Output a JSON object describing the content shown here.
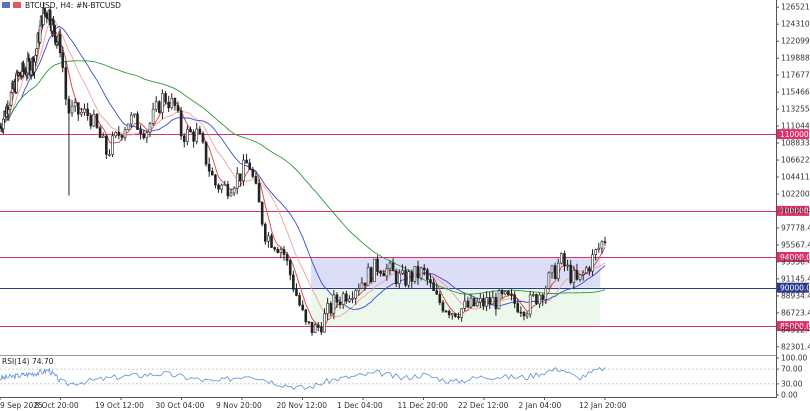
{
  "header": {
    "symbol": "BTCUSD, H4:",
    "description": "#N-BTCUSD"
  },
  "rsi_panel": {
    "label": "RSI(14) 74.70"
  },
  "price_axis": {
    "labels": [
      "126521.4",
      "124310.4",
      "122099.4",
      "119888.4",
      "117677.4",
      "115466.4",
      "113255.4",
      "111044.4",
      "108833.4",
      "106622.4",
      "104411.4",
      "102200.4",
      "99989.4",
      "97778.4",
      "95567.4",
      "93356.4",
      "91145.4",
      "88934.4",
      "86723.4",
      "84512.4",
      "82301.4"
    ]
  },
  "rsi_axis": {
    "labels": [
      "100.00",
      "70.00",
      "30.00",
      "0.00"
    ]
  },
  "time_axis": {
    "labels": [
      "9 Sep 2025",
      "8 Oct 20:00",
      "19 Oct 12:00",
      "30 Oct 04:00",
      "9 Nov 20:00",
      "20 Nov 12:00",
      "1 Dec 04:00",
      "11 Dec 20:00",
      "22 Dec 12:00",
      "2 Jan 04:00",
      "12 Jan 20:00"
    ]
  },
  "colors": {
    "level_line": "#e0306a",
    "support_line": "#2b3a8f",
    "zone_upper": "#d6d8f6",
    "zone_lower": "#eaf7ea",
    "candle": "#222222",
    "ma_fast": "#e04040",
    "ma_mid": "#f4a0a0",
    "ma_blue": "#3a4ad0",
    "ma_green": "#2e9a3a",
    "rsi": "#5b8fd8"
  },
  "chart_data": [
    {
      "type": "candlestick",
      "symbol": "BTCUSD",
      "timeframe": "H4",
      "ylim": [
        81500,
        127200
      ],
      "key_levels": [
        {
          "price": 110000,
          "label": "110000.0"
        },
        {
          "price": 100000,
          "label": "100000.0"
        },
        {
          "price": 94000,
          "label": "94000.0"
        },
        {
          "price": 90000,
          "label": "90000.0"
        },
        {
          "price": 85000,
          "label": "85000.0"
        }
      ],
      "zones": [
        {
          "from": 90000,
          "to": 94000,
          "start": "22 Nov",
          "end": "12 Jan"
        },
        {
          "from": 85000,
          "to": 90000,
          "start": "22 Nov",
          "end": "12 Jan"
        }
      ],
      "close_path": [
        [
          "9 Sep 2025",
          111000
        ],
        [
          "18 Sep",
          117500
        ],
        [
          "26 Sep",
          119500
        ],
        [
          "30 Sep",
          125500
        ],
        [
          "3 Oct",
          126000
        ],
        [
          "6 Oct",
          123000
        ],
        [
          "8 Oct 20:00",
          121500
        ],
        [
          "10 Oct",
          113000
        ],
        [
          "14 Oct",
          112500
        ],
        [
          "17 Oct",
          107500
        ],
        [
          "19 Oct 12:00",
          110500
        ],
        [
          "21 Oct",
          112000
        ],
        [
          "24 Oct",
          110500
        ],
        [
          "27 Oct",
          115000
        ],
        [
          "29 Oct",
          113500
        ],
        [
          "30 Oct 04:00",
          110000
        ],
        [
          "2 Nov",
          110000
        ],
        [
          "5 Nov",
          103500
        ],
        [
          "7 Nov",
          103000
        ],
        [
          "9 Nov 20:00",
          105000
        ],
        [
          "11 Nov",
          106500
        ],
        [
          "14 Nov",
          97000
        ],
        [
          "17 Nov",
          95000
        ],
        [
          "20 Nov 12:00",
          86500
        ],
        [
          "21 Nov",
          85000
        ],
        [
          "23 Nov",
          84500
        ],
        [
          "26 Nov",
          88000
        ],
        [
          "1 Dec 04:00",
          91000
        ],
        [
          "4 Dec",
          93000
        ],
        [
          "8 Dec",
          91000
        ],
        [
          "11 Dec 20:00",
          92000
        ],
        [
          "14 Dec",
          88500
        ],
        [
          "17 Dec",
          87000
        ],
        [
          "22 Dec 12:00",
          88000
        ],
        [
          "26 Dec",
          88500
        ],
        [
          "30 Dec",
          87500
        ],
        [
          "2 Jan 04:00",
          90000
        ],
        [
          "5 Jan",
          93500
        ],
        [
          "8 Jan",
          90500
        ],
        [
          "12 Jan 20:00",
          96500
        ]
      ]
    },
    {
      "type": "line",
      "name": "RSI(14)",
      "ylim": [
        0,
        100
      ],
      "levels": [
        70,
        30
      ],
      "last_value": 74.7,
      "path": [
        [
          "9 Sep 2025",
          45
        ],
        [
          "30 Sep",
          62
        ],
        [
          "3 Oct",
          68
        ],
        [
          "10 Oct",
          30
        ],
        [
          "19 Oct 12:00",
          50
        ],
        [
          "27 Oct",
          58
        ],
        [
          "5 Nov",
          35
        ],
        [
          "11 Nov",
          55
        ],
        [
          "17 Nov",
          28
        ],
        [
          "21 Nov",
          18
        ],
        [
          "26 Nov",
          42
        ],
        [
          "4 Dec",
          60
        ],
        [
          "8 Dec",
          45
        ],
        [
          "11 Dec 20:00",
          55
        ],
        [
          "17 Dec",
          35
        ],
        [
          "22 Dec 12:00",
          50
        ],
        [
          "30 Dec",
          48
        ],
        [
          "2 Jan 04:00",
          62
        ],
        [
          "5 Jan",
          72
        ],
        [
          "8 Jan",
          45
        ],
        [
          "12 Jan 20:00",
          74.7
        ]
      ]
    }
  ]
}
